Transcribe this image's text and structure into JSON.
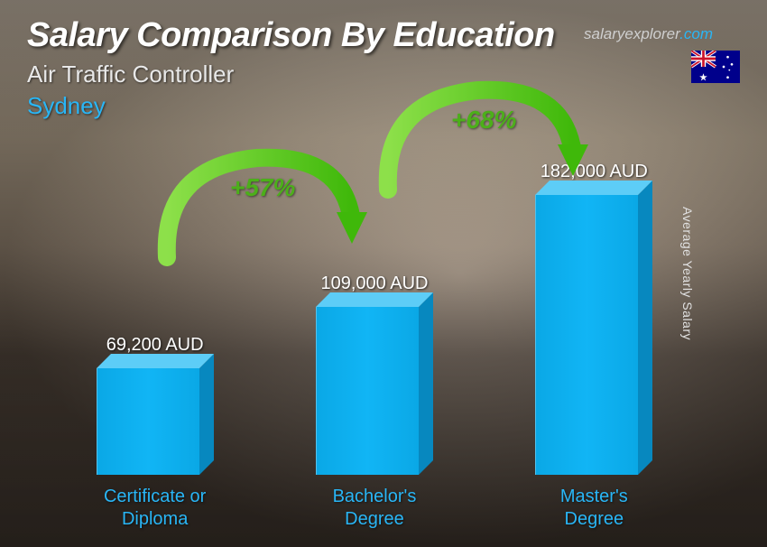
{
  "header": {
    "title": "Salary Comparison By Education",
    "subtitle": "Air Traffic Controller",
    "location": "Sydney"
  },
  "brand": {
    "name": "salaryexplorer",
    "tld": ".com"
  },
  "flag": {
    "country": "Australia",
    "base_color": "#00008b",
    "star_color": "#ffffff"
  },
  "y_axis_label": "Average Yearly Salary",
  "chart": {
    "type": "bar-3d",
    "bar_color_front": "#0db4f2",
    "bar_color_side": "#0788bf",
    "bar_color_top": "#5dcdf7",
    "background": "airport_photo",
    "max_value": 182000,
    "bars": [
      {
        "label": "Certificate or Diploma",
        "value": 69200,
        "display": "69,200 AUD"
      },
      {
        "label": "Bachelor's Degree",
        "value": 109000,
        "display": "109,000 AUD"
      },
      {
        "label": "Master's Degree",
        "value": 182000,
        "display": "182,000 AUD"
      }
    ],
    "arrows": [
      {
        "pct": "+57%",
        "from": 0,
        "to": 1,
        "color": "#57d40f"
      },
      {
        "pct": "+68%",
        "from": 1,
        "to": 2,
        "color": "#57d40f"
      }
    ],
    "label_color": "#29b6f6",
    "value_color": "#ffffff",
    "label_fontsize": 20,
    "value_fontsize": 20,
    "pct_fontsize": 28,
    "pct_color": "#4caf1a"
  }
}
